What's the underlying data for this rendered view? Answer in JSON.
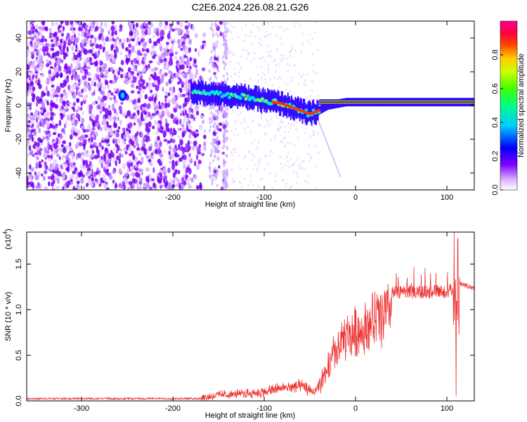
{
  "title": "C2E6.2024.226.08.21.G26",
  "chart_data": [
    {
      "type": "heatmap",
      "title": "C2E6.2024.226.08.21.G26",
      "xlabel": "Height of straight line (km)",
      "ylabel": "Frequency (Hz)",
      "xlim": [
        -360,
        130
      ],
      "ylim": [
        -50,
        50
      ],
      "xticks": [
        -300,
        -200,
        -100,
        0,
        100
      ],
      "yticks": [
        -40,
        -20,
        0,
        20,
        40
      ],
      "colorbar": {
        "label": "Normalized spectral amplitude",
        "range": [
          0.0,
          1.0
        ],
        "ticks": [
          0.0,
          0.2,
          0.4,
          0.6,
          0.8
        ],
        "tick_labels": [
          "0.0",
          "0.2",
          "0.4",
          "0.6",
          "0.8"
        ],
        "colormap": [
          "#ffffff",
          "#cc99ff",
          "#8000ff",
          "#0000ff",
          "#00ccff",
          "#00ff66",
          "#66ff00",
          "#ffff00",
          "#ff8800",
          "#ff0000",
          "#ff0080"
        ]
      },
      "ridge": {
        "description_points": [
          {
            "x": -180,
            "y": 8
          },
          {
            "x": -150,
            "y": 7
          },
          {
            "x": -120,
            "y": 5
          },
          {
            "x": -100,
            "y": 3
          },
          {
            "x": -80,
            "y": 1
          },
          {
            "x": -60,
            "y": -3
          },
          {
            "x": -50,
            "y": -5
          },
          {
            "x": -40,
            "y": -3
          },
          {
            "x": -30,
            "y": 0
          },
          {
            "x": -20,
            "y": 1
          },
          {
            "x": -10,
            "y": 2
          },
          {
            "x": 0,
            "y": 2
          },
          {
            "x": 130,
            "y": 2
          }
        ],
        "noise_floor_xmax": -140,
        "feature_x": -255,
        "feature_y": 6
      }
    },
    {
      "type": "line",
      "xlabel": "Height of straight line (km)",
      "ylabel": "SNR (10 * v/v)",
      "yscale_label": "(x10",
      "yscale_exponent": "4",
      "yscale_suffix": ")",
      "xlim": [
        -360,
        130
      ],
      "ylim": [
        0,
        1.85
      ],
      "xticks": [
        -300,
        -200,
        -100,
        0,
        100
      ],
      "yticks": [
        0.0,
        0.5,
        1.0,
        1.5
      ],
      "ytick_labels": [
        "0.0",
        "0.5",
        "1.0",
        "1.5"
      ],
      "color": "#ee3333",
      "series": [
        {
          "values_envelope": [
            {
              "x": -360,
              "y": 0.02
            },
            {
              "x": -250,
              "y": 0.03
            },
            {
              "x": -170,
              "y": 0.04
            },
            {
              "x": -150,
              "y": 0.08
            },
            {
              "x": -120,
              "y": 0.1
            },
            {
              "x": -100,
              "y": 0.12
            },
            {
              "x": -80,
              "y": 0.18
            },
            {
              "x": -60,
              "y": 0.2
            },
            {
              "x": -45,
              "y": 0.12
            },
            {
              "x": -35,
              "y": 0.3
            },
            {
              "x": -25,
              "y": 0.6
            },
            {
              "x": -15,
              "y": 0.8
            },
            {
              "x": -5,
              "y": 0.9
            },
            {
              "x": 10,
              "y": 1.0
            },
            {
              "x": 25,
              "y": 1.15
            },
            {
              "x": 40,
              "y": 1.23
            },
            {
              "x": 60,
              "y": 1.24
            },
            {
              "x": 80,
              "y": 1.25
            },
            {
              "x": 100,
              "y": 1.25
            },
            {
              "x": 110,
              "y": 1.3
            },
            {
              "x": 130,
              "y": 1.23
            }
          ],
          "spikes": [
            {
              "x": 108,
              "y": 1.85
            },
            {
              "x": 110,
              "y": 0.05
            },
            {
              "x": 112,
              "y": 1.78
            }
          ]
        }
      ]
    }
  ]
}
